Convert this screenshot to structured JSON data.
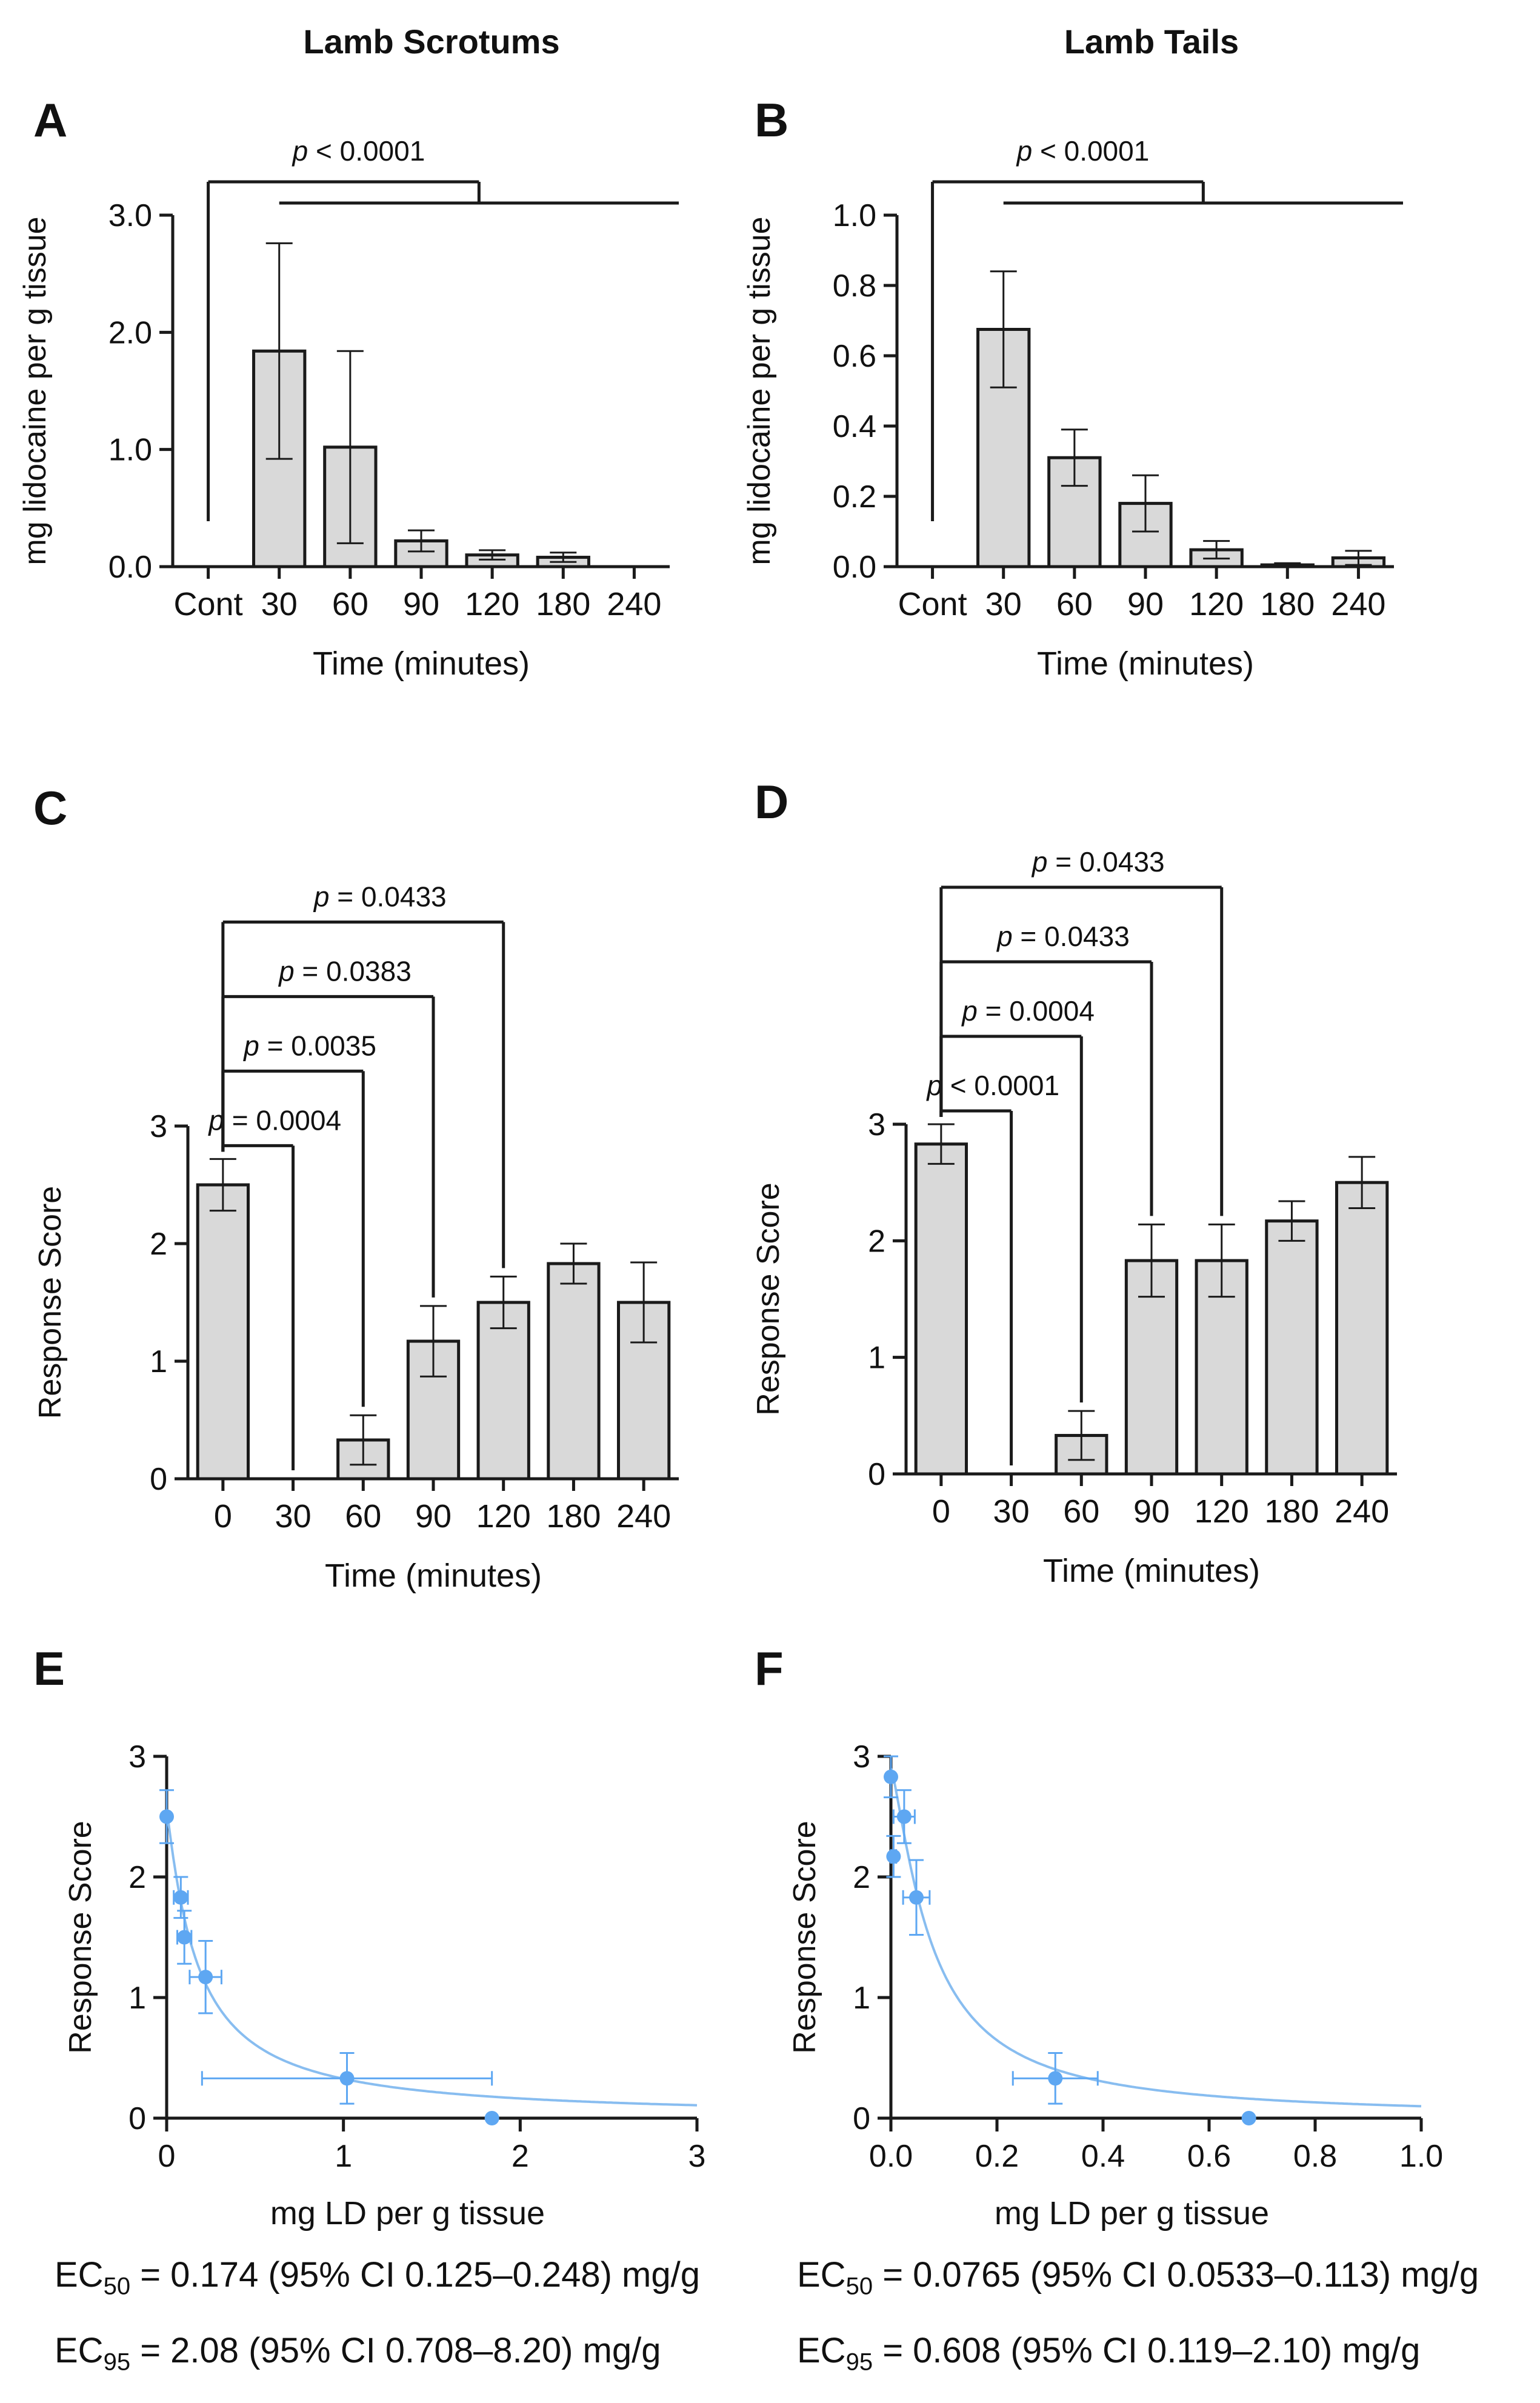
{
  "figure": {
    "col_headers": [
      "Lamb Scrotums",
      "Lamb Tails"
    ]
  },
  "chart_data": [
    {
      "id": "A",
      "type": "bar",
      "panel_letter": "A",
      "categories": [
        "Cont",
        "30",
        "60",
        "90",
        "120",
        "180",
        "240"
      ],
      "values": [
        0,
        1.84,
        1.02,
        0.22,
        0.1,
        0.08,
        0
      ],
      "errors": [
        0,
        0.92,
        0.82,
        0.09,
        0.04,
        0.04,
        0
      ],
      "xlabel": "Time (minutes)",
      "ylabel": "mg lidocaine per g tissue",
      "ylim": [
        0,
        3.0
      ],
      "yticks": [
        0,
        1,
        2,
        3
      ],
      "ytick_labels": [
        "0.0",
        "1.0",
        "2.0",
        "3.0"
      ],
      "annotations": [
        {
          "p": "p",
          "rest": " < 0.0001"
        }
      ]
    },
    {
      "id": "B",
      "type": "bar",
      "panel_letter": "B",
      "categories": [
        "Cont",
        "30",
        "60",
        "90",
        "120",
        "180",
        "240"
      ],
      "values": [
        0,
        0.675,
        0.31,
        0.18,
        0.048,
        0.005,
        0.025
      ],
      "errors": [
        0,
        0.165,
        0.08,
        0.08,
        0.025,
        0.005,
        0.02
      ],
      "xlabel": "Time (minutes)",
      "ylabel": "mg lidocaine per g tissue",
      "ylim": [
        0,
        1.0
      ],
      "yticks": [
        0,
        0.2,
        0.4,
        0.6,
        0.8,
        1.0
      ],
      "ytick_labels": [
        "0.0",
        "0.2",
        "0.4",
        "0.6",
        "0.8",
        "1.0"
      ],
      "annotations": [
        {
          "p": "p",
          "rest": " < 0.0001"
        }
      ]
    },
    {
      "id": "C",
      "type": "bar",
      "panel_letter": "C",
      "categories": [
        "0",
        "30",
        "60",
        "90",
        "120",
        "180",
        "240"
      ],
      "values": [
        2.5,
        0,
        0.33,
        1.17,
        1.5,
        1.83,
        1.5
      ],
      "errors": [
        0.22,
        0,
        0.21,
        0.3,
        0.22,
        0.17,
        0.34
      ],
      "xlabel": "Time (minutes)",
      "ylabel": "Response Score",
      "ylim": [
        0,
        3
      ],
      "yticks": [
        0,
        1,
        2,
        3
      ],
      "ytick_labels": [
        "0",
        "1",
        "2",
        "3"
      ],
      "annotations": [
        {
          "p": "p",
          "rest": " = 0.0004",
          "to": "30"
        },
        {
          "p": "p",
          "rest": " = 0.0035",
          "to": "60"
        },
        {
          "p": "p",
          "rest": " = 0.0383",
          "to": "90"
        },
        {
          "p": "p",
          "rest": " = 0.0433",
          "to": "120"
        }
      ]
    },
    {
      "id": "D",
      "type": "bar",
      "panel_letter": "D",
      "categories": [
        "0",
        "30",
        "60",
        "90",
        "120",
        "180",
        "240"
      ],
      "values": [
        2.83,
        0,
        0.33,
        1.83,
        1.83,
        2.17,
        2.5
      ],
      "errors": [
        0.17,
        0,
        0.21,
        0.31,
        0.31,
        0.17,
        0.22
      ],
      "xlabel": "Time (minutes)",
      "ylabel": "Response Score",
      "ylim": [
        0,
        3
      ],
      "yticks": [
        0,
        1,
        2,
        3
      ],
      "ytick_labels": [
        "0",
        "1",
        "2",
        "3"
      ],
      "annotations": [
        {
          "p": "p",
          "rest": " < 0.0001",
          "to": "30"
        },
        {
          "p": "p",
          "rest": " = 0.0004",
          "to": "60"
        },
        {
          "p": "p",
          "rest": " = 0.0433",
          "to": "90"
        },
        {
          "p": "p",
          "rest": " = 0.0433",
          "to": "120"
        }
      ]
    },
    {
      "id": "E",
      "type": "scatter",
      "panel_letter": "E",
      "points": [
        {
          "x": 0.0,
          "y": 2.5,
          "xerr": 0,
          "yerr": 0.22
        },
        {
          "x": 0.08,
          "y": 1.83,
          "xerr": 0.04,
          "yerr": 0.17
        },
        {
          "x": 0.1,
          "y": 1.5,
          "xerr": 0.04,
          "yerr": 0.22
        },
        {
          "x": 0.22,
          "y": 1.17,
          "xerr": 0.09,
          "yerr": 0.3
        },
        {
          "x": 1.02,
          "y": 0.33,
          "xerr": 0.82,
          "yerr": 0.21
        },
        {
          "x": 1.84,
          "y": 0.0,
          "xerr": 0,
          "yerr": 0
        }
      ],
      "fit": {
        "model": "Response = top / (1 + (x/EC50)^hill)",
        "top": 2.56,
        "ec50": 0.174,
        "hill": 1.1
      },
      "xlabel": "mg LD per g tissue",
      "ylabel": "Response Score",
      "xlim": [
        0,
        3
      ],
      "ylim": [
        0,
        3
      ],
      "xticks": [
        0,
        1,
        2,
        3
      ],
      "xtick_labels": [
        "0",
        "1",
        "2",
        "3"
      ],
      "yticks": [
        0,
        1,
        2,
        3
      ],
      "ytick_labels": [
        "0",
        "1",
        "2",
        "3"
      ],
      "ec50_text": {
        "label": "EC",
        "sub": "50",
        "rest": " = 0.174 (95% CI 0.125–0.248) mg/g"
      },
      "ec95_text": {
        "label": "EC",
        "sub": "95",
        "rest": " = 2.08 (95% CI 0.708–8.20) mg/g"
      }
    },
    {
      "id": "F",
      "type": "scatter",
      "panel_letter": "F",
      "points": [
        {
          "x": 0.0,
          "y": 2.83,
          "xerr": 0,
          "yerr": 0.17
        },
        {
          "x": 0.005,
          "y": 2.17,
          "xerr": 0.005,
          "yerr": 0.17
        },
        {
          "x": 0.025,
          "y": 2.5,
          "xerr": 0.02,
          "yerr": 0.22
        },
        {
          "x": 0.048,
          "y": 1.83,
          "xerr": 0.025,
          "yerr": 0.31
        },
        {
          "x": 0.31,
          "y": 0.33,
          "xerr": 0.08,
          "yerr": 0.21
        },
        {
          "x": 0.675,
          "y": 0.0,
          "xerr": 0,
          "yerr": 0
        }
      ],
      "fit": {
        "model": "Response = top / (1 + (x/EC50)^hill)",
        "top": 2.9,
        "ec50": 0.0765,
        "hill": 1.3
      },
      "xlabel": "mg LD per g tissue",
      "ylabel": "Response Score",
      "xlim": [
        0,
        1.0
      ],
      "ylim": [
        0,
        3
      ],
      "xticks": [
        0,
        0.2,
        0.4,
        0.6,
        0.8,
        1.0
      ],
      "xtick_labels": [
        "0.0",
        "0.2",
        "0.4",
        "0.6",
        "0.8",
        "1.0"
      ],
      "yticks": [
        0,
        1,
        2,
        3
      ],
      "ytick_labels": [
        "0",
        "1",
        "2",
        "3"
      ],
      "ec50_text": {
        "label": "EC",
        "sub": "50",
        "rest": " = 0.0765 (95% CI 0.0533–0.113) mg/g"
      },
      "ec95_text": {
        "label": "EC",
        "sub": "95",
        "rest": " = 0.608 (95% CI 0.119–2.10) mg/g"
      }
    }
  ],
  "colors": {
    "bar_fill": "#d9d9d9",
    "bar_stroke": "#1a1a1a",
    "axis": "#1a1a1a",
    "point": "#5ea7f2",
    "fit_line": "#88bdf0"
  }
}
